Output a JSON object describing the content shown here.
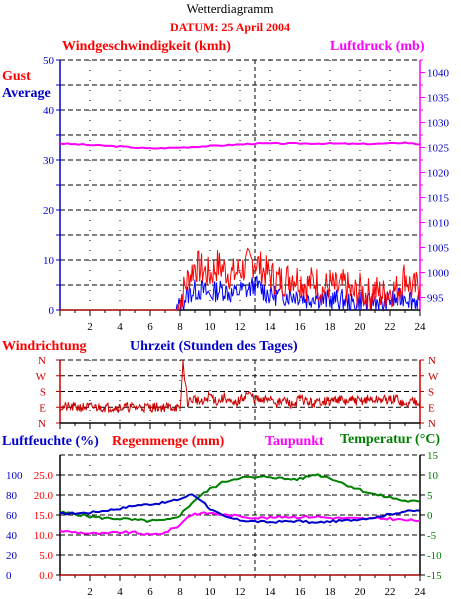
{
  "header": {
    "title": "Wetterdiagramm",
    "date_label": "DATUM: 25 April 2004"
  },
  "colors": {
    "red": "#ff0000",
    "blue": "#0000ff",
    "magenta": "#ff00ff",
    "green": "#008000",
    "axis_blue": "#0000cc",
    "axis_red": "#cc0000",
    "gust": "#ff0000",
    "average": "#0000ff",
    "pressure": "#ff00ff",
    "wind_direction": "#cc0000",
    "humidity": "#0000cc",
    "rain": "#ff0000",
    "dewpoint": "#ff00ff",
    "temperature": "#008000"
  },
  "chart_data": [
    {
      "type": "line",
      "title": "",
      "left_label": "Windgeschwindigkeit (kmh)",
      "right_label": "Luftdruck (mb)",
      "legend": [
        "Gust",
        "Average"
      ],
      "xlabel": "",
      "xlim": [
        0,
        24
      ],
      "ylim_left": [
        0,
        50
      ],
      "ylim_right": [
        992.5,
        1042.5
      ],
      "left_ticks": [
        "0",
        "10",
        "20",
        "30",
        "40",
        "50"
      ],
      "right_ticks": [
        "995",
        "1000",
        "1005",
        "1010",
        "1015",
        "1020",
        "1025",
        "1030",
        "1035",
        "1040"
      ],
      "x_tick_labels": [
        "2",
        "4",
        "6",
        "8",
        "10",
        "12",
        "14",
        "16",
        "18",
        "20",
        "22",
        "24"
      ],
      "marker_x": 13,
      "series": [
        {
          "name": "Gust",
          "axis": "left",
          "note": "0 until 08:00, then fluctuating roughly 0 to 13 km/h",
          "x": [
            0,
            7.8,
            8.0,
            8.5,
            9.0,
            9.5,
            10,
            10.5,
            11,
            11.5,
            12,
            12.5,
            13,
            13.5,
            14,
            14.5,
            15,
            15.5,
            16,
            16.5,
            17,
            17.5,
            18,
            18.5,
            19,
            19.5,
            20,
            20.5,
            21,
            21.5,
            22,
            22.5,
            23,
            23.5,
            24
          ],
          "values": [
            0,
            0,
            2,
            6,
            9,
            8,
            7,
            9,
            8,
            7,
            8,
            9,
            10,
            8,
            7,
            6,
            6,
            7,
            6,
            5,
            6,
            4,
            5,
            4,
            5,
            3,
            4,
            3,
            4,
            3,
            4,
            4,
            7,
            4,
            5
          ]
        },
        {
          "name": "Average",
          "axis": "left",
          "note": "0 until 08:00, then fluctuating roughly 0 to 8 km/h",
          "x": [
            0,
            7.8,
            8.0,
            8.5,
            9.0,
            9.5,
            10,
            10.5,
            11,
            11.5,
            12,
            12.5,
            13,
            13.5,
            14,
            14.5,
            15,
            15.5,
            16,
            16.5,
            17,
            17.5,
            18,
            18.5,
            19,
            19.5,
            20,
            20.5,
            21,
            21.5,
            22,
            22.5,
            23,
            23.5,
            24
          ],
          "values": [
            0,
            0,
            1,
            3,
            4,
            4,
            3,
            4,
            4,
            3,
            4,
            4,
            5,
            4,
            3,
            3,
            3,
            3,
            3,
            2,
            3,
            2,
            2,
            2,
            2,
            1,
            2,
            1,
            2,
            1,
            2,
            2,
            3,
            2,
            2
          ]
        },
        {
          "name": "Luftdruck",
          "axis": "right",
          "x": [
            0,
            2,
            4,
            5,
            6,
            7,
            8,
            10,
            12,
            13,
            14,
            16,
            18,
            20,
            22,
            23,
            24
          ],
          "values": [
            1025.8,
            1025.5,
            1025.2,
            1025.0,
            1024.8,
            1024.9,
            1025.0,
            1025.3,
            1025.6,
            1025.8,
            1025.8,
            1025.8,
            1025.8,
            1025.7,
            1025.8,
            1026.0,
            1025.6
          ]
        }
      ]
    },
    {
      "type": "line",
      "title": "",
      "left_label": "Windrichtung",
      "xlabel": "Uhrzeit (Stunden des Tages)",
      "xlim": [
        0,
        24
      ],
      "y_categories": [
        "N",
        "W",
        "S",
        "E",
        "N"
      ],
      "note": "compass direction in degrees: N=0, E=90, S=180, W=270, N=360",
      "marker_x": 13,
      "series": [
        {
          "name": "Windrichtung",
          "x": [
            0,
            7.8,
            8.0,
            8.2,
            8.5,
            9.0,
            9.5,
            10,
            10.5,
            11,
            11.5,
            12,
            12.5,
            13,
            13.5,
            14,
            14.5,
            15,
            15.5,
            16,
            16.5,
            17,
            17.5,
            18,
            18.5,
            19,
            19.5,
            20,
            20.5,
            21,
            21.5,
            22,
            22.5,
            23,
            23.5,
            24
          ],
          "values": [
            90,
            90,
            60,
            345,
            120,
            140,
            110,
            160,
            120,
            150,
            100,
            130,
            170,
            140,
            120,
            150,
            110,
            130,
            100,
            140,
            120,
            110,
            130,
            120,
            140,
            120,
            130,
            125,
            135,
            130,
            135,
            130,
            140,
            95,
            130,
            125
          ]
        }
      ]
    },
    {
      "type": "line",
      "title": "",
      "labels": [
        "Luftfeuchte (%)",
        "Regenmenge (mm)",
        "Taupunkt",
        "Temperatur (°C)"
      ],
      "xlim": [
        0,
        24
      ],
      "humidity_ticks": [
        "0",
        "20",
        "40",
        "60",
        "80",
        "100"
      ],
      "rain_ticks": [
        "0.0",
        "5.0",
        "10.0",
        "15.0",
        "20.0",
        "25.0"
      ],
      "temp_ticks": [
        "-15",
        "-10",
        "-5",
        "0",
        "5",
        "10",
        "15"
      ],
      "ylim_temp": [
        -15,
        15
      ],
      "x_tick_labels": [
        "2",
        "4",
        "6",
        "8",
        "10",
        "12",
        "14",
        "16",
        "18",
        "20",
        "22",
        "24"
      ],
      "marker_x": 13,
      "series": [
        {
          "name": "Luftfeuchte",
          "axis": "temp_scale",
          "x": [
            0,
            2,
            4,
            5,
            6,
            7,
            8,
            8.8,
            9.5,
            10,
            11,
            12,
            13,
            14,
            15,
            16,
            17,
            18,
            19,
            20,
            21,
            22,
            23,
            24
          ],
          "values": [
            0.3,
            0.6,
            1.6,
            2.4,
            2.7,
            3.1,
            4.0,
            5.2,
            3.5,
            1.5,
            -0.5,
            -1.3,
            -1.6,
            -1.8,
            -1.6,
            -1.5,
            -2.0,
            -1.6,
            -1.4,
            -1.0,
            -0.6,
            0.2,
            0.9,
            1.1
          ]
        },
        {
          "name": "Regenmenge",
          "axis": "rain",
          "x": [
            0,
            24
          ],
          "values": [
            0,
            0
          ]
        },
        {
          "name": "Taupunkt",
          "axis": "temp_scale",
          "x": [
            0,
            2,
            3,
            4,
            5,
            6,
            7,
            8,
            8.5,
            9,
            10,
            11,
            12,
            13,
            14,
            15,
            16,
            17,
            18,
            19,
            20,
            21,
            22,
            23,
            24
          ],
          "values": [
            -4.0,
            -4.6,
            -4.7,
            -4.3,
            -4.4,
            -5.0,
            -4.4,
            -2.5,
            -0.4,
            0.3,
            0.5,
            0.0,
            -0.3,
            -0.7,
            -0.7,
            -0.4,
            -0.5,
            -0.4,
            -0.7,
            -0.8,
            -0.9,
            -0.9,
            -0.9,
            -1.3,
            -1.4
          ]
        },
        {
          "name": "Temperatur",
          "axis": "temp_scale",
          "x": [
            0,
            1,
            2,
            3,
            4,
            5,
            6,
            7,
            7.5,
            8,
            9,
            10,
            11,
            12,
            13,
            14,
            15,
            16,
            17,
            18,
            19,
            20,
            21,
            22,
            23,
            24
          ],
          "values": [
            0.6,
            0.3,
            -0.4,
            -0.8,
            -0.9,
            -1.3,
            -1.5,
            -1.4,
            -1.0,
            0.0,
            3.8,
            6.5,
            8.4,
            9.4,
            9.3,
            9.6,
            9.0,
            9.0,
            10.2,
            9.3,
            7.7,
            6.3,
            5.1,
            4.4,
            3.5,
            3.3
          ]
        }
      ]
    }
  ]
}
